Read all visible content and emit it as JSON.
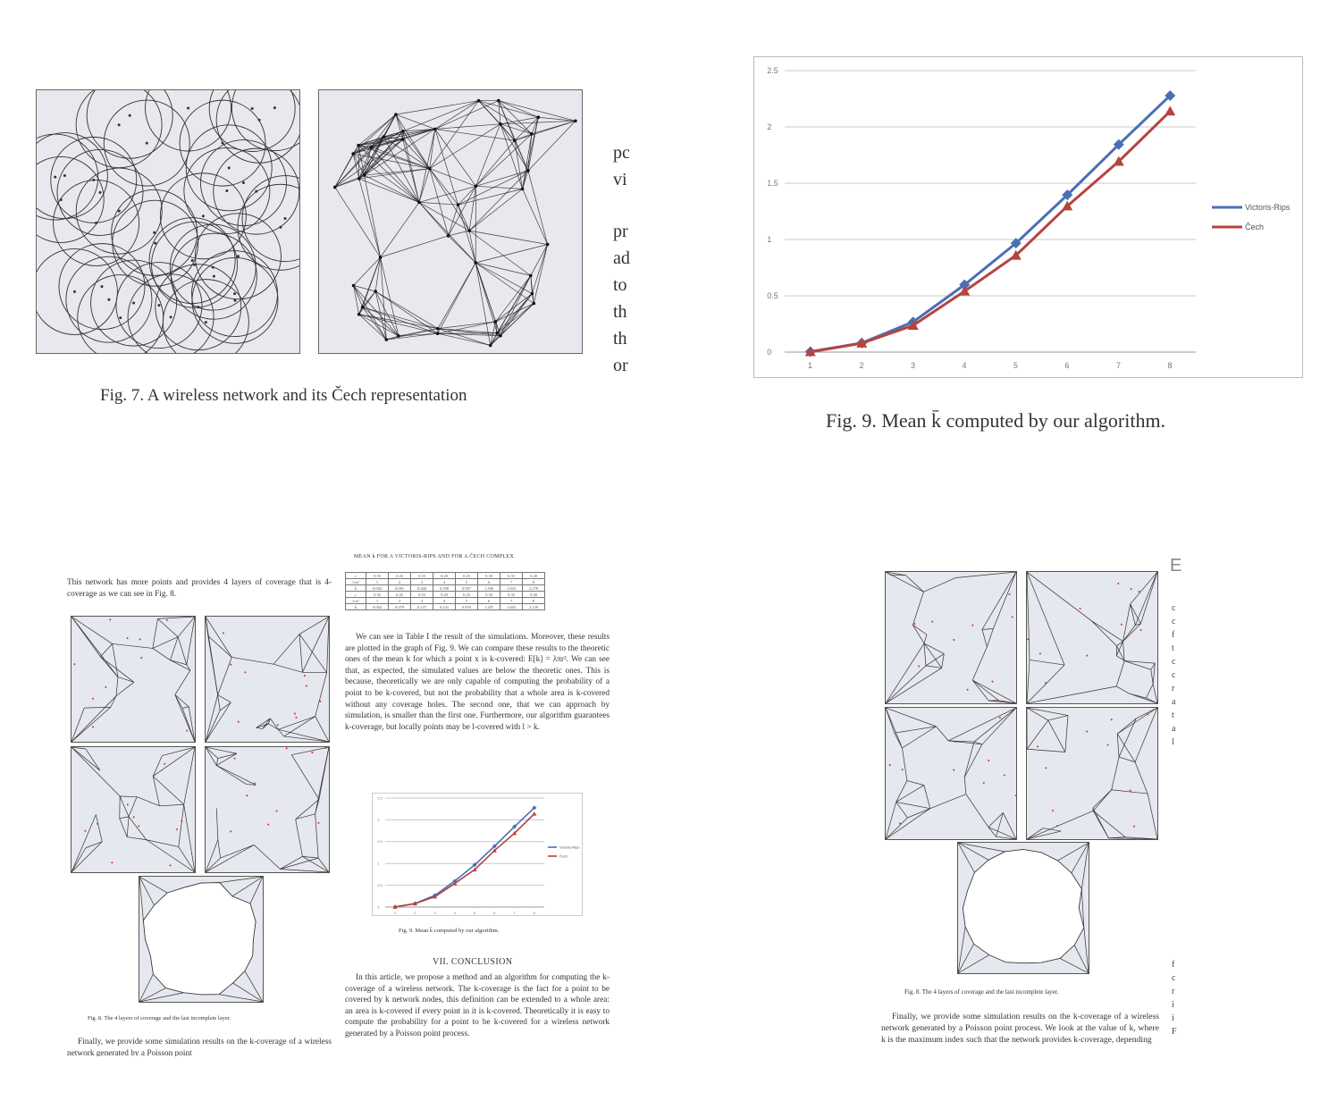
{
  "q1": {
    "fig7_caption": "Fig. 7.   A wireless network and its Čech representation",
    "side_fragments": [
      "pc",
      "vi",
      "pr",
      "ad",
      "to",
      "th",
      "th",
      "or"
    ]
  },
  "q2": {
    "fig9_caption": "Fig. 9.  Mean k̄ computed by our algorithm."
  },
  "q3": {
    "intro_text": "This network has more points and provides 4 layers of coverage that is 4-coverage as we can see in Fig. 8.",
    "table_title": "MEAN k FOR A VICTORIS-RIPS AND FOR A ČECH COMPLEX",
    "table_rows": [
      [
        "r",
        "0.35",
        "0.45",
        "0.55",
        "0.20",
        "0.25",
        "0.30",
        "0.35",
        "0.40"
      ],
      [
        "λπr²",
        "1",
        "2",
        "3",
        "4",
        "5",
        "6",
        "7",
        "8"
      ],
      [
        "k̄",
        "0.004",
        "0.081",
        "0.268",
        "0.598",
        "0.967",
        "1.396",
        "1.843",
        "2.278"
      ],
      [
        "r",
        "0.35",
        "0.45",
        "0.55",
        "0.20",
        "0.25",
        "0.30",
        "0.35",
        "0.40"
      ],
      [
        "λπr²",
        "1",
        "2",
        "3",
        "4",
        "5",
        "6",
        "7",
        "8"
      ],
      [
        "k̄",
        "0.002",
        "0.079",
        "0.237",
        "0.541",
        "0.859",
        "1.297",
        "1.693",
        "2.139"
      ]
    ],
    "body_text": "We can see in Table I the result of the simulations. Moreover, these results are plotted in the graph of Fig. 9. We can compare these results to the theoretic ones of the mean k for which a point x is k-covered: E[k] = λπr². We can see that, as expected, the simulated values are below the theoretic ones. This is because, theoretically we are only capable of computing the probability of a point to be k-covered, but not the probability that a whole area is k-covered without any coverage holes. The second one, that we can approach by simulation, is smaller than the first one. Furthermore, our algorithm guarantees k-coverage, but locally points may be l-covered with l > k.",
    "fig8_caption": "Fig. 8.   The 4 layers of coverage and the last incomplete layer.",
    "fig9_caption": "Fig. 9.  Mean k̄ computed by our algorithm.",
    "section_heading": "VII. CONCLUSION",
    "conclusion_text": "In this article, we propose a method and an algorithm for computing the k-coverage of a wireless network. The k-coverage is the fact for a point to be covered by k network nodes, this definition can be extended to a whole area: an area is k-covered if every point in it is k-covered. Theoretically it is easy to compute the probability for a point to be k-covered for a wireless network generated by a Poisson point process.",
    "finally_text": "Finally, we provide some simulation results on the k-coverage of a wireless network generated by a Poisson point"
  },
  "q4": {
    "fig8_caption": "Fig. 8.   The 4 layers of coverage and the last incomplete layer.",
    "finally_text": "Finally, we provide some simulation results on the k-coverage of a wireless network generated by a Poisson point process. We look at the value of k, where k is the maximum index such that the network provides k-coverage, depending",
    "right_fragments": [
      "c",
      "c",
      "f",
      "t",
      "c",
      "c",
      "r",
      "a",
      "t",
      "a",
      "l"
    ],
    "right_fragments_bottom": [
      "f",
      "c",
      "r",
      "i",
      "i",
      "F"
    ],
    "corner_glyph": "E"
  },
  "chart_data": {
    "type": "line",
    "categories": [
      "1",
      "2",
      "3",
      "4",
      "5",
      "6",
      "7",
      "8"
    ],
    "series": [
      {
        "name": "Victoris-Rips",
        "values": [
          0.004,
          0.081,
          0.268,
          0.598,
          0.967,
          1.396,
          1.843,
          2.278
        ],
        "color": "#4a6fb5",
        "marker": "diamond"
      },
      {
        "name": "Čech",
        "values": [
          0.002,
          0.079,
          0.237,
          0.541,
          0.859,
          1.297,
          1.693,
          2.139
        ],
        "color": "#b5443f",
        "marker": "triangle"
      }
    ],
    "yticks": [
      "0",
      "0.5",
      "1",
      "1.5",
      "2",
      "2.5"
    ],
    "ylim": [
      0,
      2.5
    ],
    "grid": true,
    "legend": "right"
  }
}
